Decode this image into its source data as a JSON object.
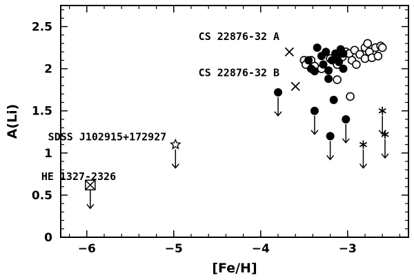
{
  "chart_data": {
    "type": "scatter",
    "xlabel": "[Fe/H]",
    "ylabel": "A(Li)",
    "xlim": [
      -6.3,
      -2.3
    ],
    "ylim": [
      0,
      2.75
    ],
    "x_ticks": [
      -6,
      -5,
      -4,
      -3
    ],
    "x_tick_labels": [
      "−6",
      "−5",
      "−4",
      "−3"
    ],
    "y_ticks": [
      0,
      0.5,
      1,
      1.5,
      2,
      2.5
    ],
    "y_tick_labels": [
      "0",
      "0.5",
      "1",
      "1.5",
      "2",
      "2.5"
    ],
    "grid": false,
    "annotations": [
      {
        "text": "CS 22876-32 A",
        "x": -3.72,
        "y": 2.38
      },
      {
        "text": "CS 22876-32 B",
        "x": -3.72,
        "y": 1.95
      },
      {
        "text": "SDSS J102915+172927",
        "x": -5.02,
        "y": 1.19
      },
      {
        "text": "HE 1327-2326",
        "x": -5.6,
        "y": 0.72
      }
    ],
    "series": [
      {
        "marker": "open-circle",
        "points": [
          [
            -3.5,
            2.1
          ],
          [
            -3.48,
            2.05
          ],
          [
            -3.42,
            2.1
          ],
          [
            -3.38,
            2.03
          ],
          [
            -3.3,
            2.0
          ],
          [
            -3.2,
            2.12
          ],
          [
            -3.12,
            1.87
          ],
          [
            -3.12,
            2.05
          ],
          [
            -3.06,
            2.14
          ],
          [
            -3.02,
            2.2
          ],
          [
            -2.98,
            2.18
          ],
          [
            -2.97,
            1.67
          ],
          [
            -2.95,
            2.1
          ],
          [
            -2.92,
            2.22
          ],
          [
            -2.9,
            2.05
          ],
          [
            -2.86,
            2.17
          ],
          [
            -2.8,
            2.12
          ],
          [
            -2.8,
            2.25
          ],
          [
            -2.77,
            2.3
          ],
          [
            -2.75,
            2.2
          ],
          [
            -2.72,
            2.13
          ],
          [
            -2.68,
            2.25
          ],
          [
            -2.62,
            2.27
          ],
          [
            -2.65,
            2.15
          ],
          [
            -2.6,
            2.25
          ]
        ],
        "upper_limits": []
      },
      {
        "marker": "filled-circle",
        "points": [
          [
            -3.8,
            1.72
          ],
          [
            -3.38,
            1.5
          ],
          [
            -3.2,
            1.2
          ],
          [
            -3.16,
            1.63
          ],
          [
            -3.02,
            1.4
          ],
          [
            -3.45,
            2.1
          ],
          [
            -3.42,
            2.0
          ],
          [
            -3.38,
            1.97
          ],
          [
            -3.35,
            2.25
          ],
          [
            -3.3,
            2.15
          ],
          [
            -3.28,
            2.05
          ],
          [
            -3.25,
            2.2
          ],
          [
            -3.22,
            1.98
          ],
          [
            -3.18,
            2.1
          ],
          [
            -3.14,
            2.18
          ],
          [
            -3.1,
            2.08
          ],
          [
            -3.08,
            2.23
          ],
          [
            -3.05,
            2.0
          ],
          [
            -3.05,
            2.18
          ],
          [
            -3.22,
            1.88
          ],
          [
            -3.12,
            2.13
          ]
        ],
        "upper_limits": [
          [
            -3.8,
            1.72
          ],
          [
            -3.38,
            1.5
          ],
          [
            -3.2,
            1.2
          ],
          [
            -3.02,
            1.4
          ]
        ]
      },
      {
        "marker": "cross",
        "points": [
          [
            -3.67,
            2.2
          ],
          [
            -3.6,
            1.79
          ]
        ],
        "upper_limits": []
      },
      {
        "marker": "asterisk",
        "points": [
          [
            -2.82,
            1.1
          ],
          [
            -2.6,
            1.5
          ],
          [
            -2.57,
            1.22
          ]
        ],
        "upper_limits": [
          [
            -2.82,
            1.1
          ],
          [
            -2.6,
            1.5
          ],
          [
            -2.57,
            1.22
          ]
        ]
      },
      {
        "marker": "star",
        "points": [
          [
            -4.98,
            1.1
          ]
        ],
        "upper_limits": [
          [
            -4.98,
            1.1
          ]
        ]
      },
      {
        "marker": "boxed-cross",
        "points": [
          [
            -5.96,
            0.62
          ]
        ],
        "upper_limits": [
          [
            -5.96,
            0.62
          ]
        ]
      }
    ]
  }
}
